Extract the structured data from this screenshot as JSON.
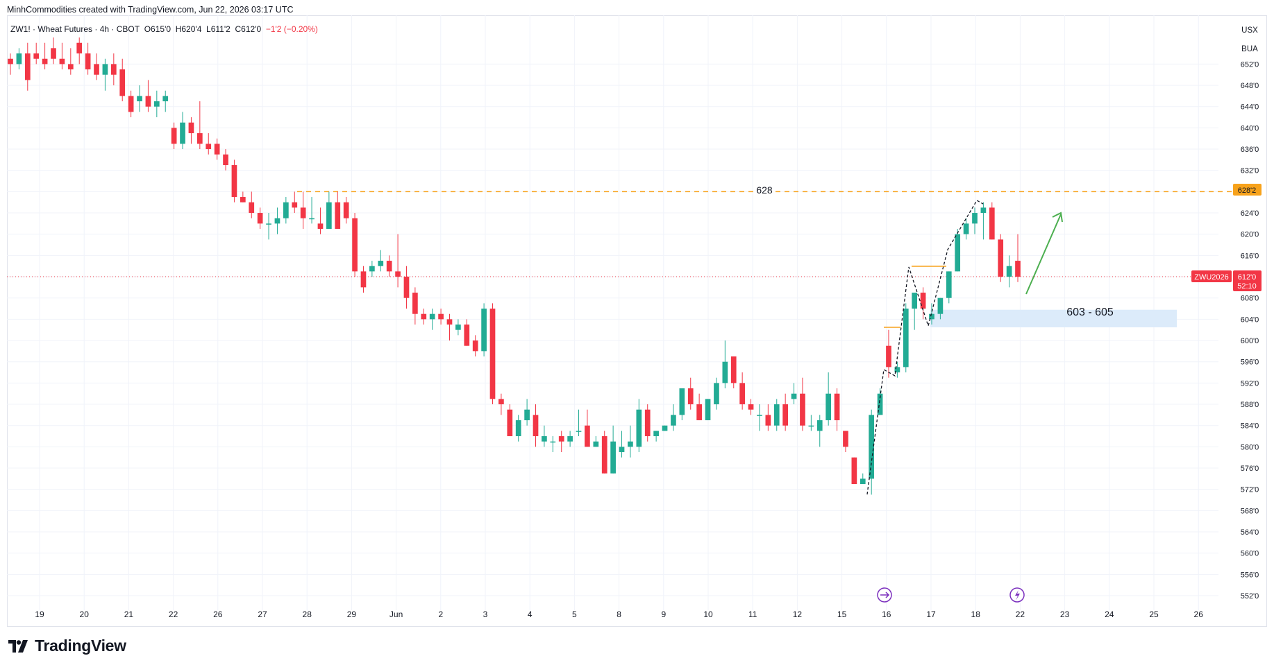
{
  "header": {
    "author_line": "MinhCommodities created with TradingView.com, Jun 22, 2026 03:17 UTC"
  },
  "legend": {
    "symbol": "ZW1! · Wheat Futures · 4h · CBOT",
    "open": "O615'0",
    "high": "H620'4",
    "low": "L611'2",
    "close": "C612'0",
    "change": "−1'2 (−0.20%)"
  },
  "scale": {
    "currency": "USX",
    "unit": "BUA"
  },
  "price_labels": {
    "level_628": "628'2",
    "current_symbol": "ZWU2026",
    "current_price": "612'0",
    "countdown": "52:10"
  },
  "annotations": {
    "resistance_label": "628",
    "support_zone_label": "603 - 605"
  },
  "brand": {
    "name": "TradingView"
  },
  "colors": {
    "up": "#22ab94",
    "down": "#f23645",
    "resistance": "#f7a21b",
    "arrow": "#4caf50",
    "zone": "#dcebfa",
    "event_icon": "#7b2fbe"
  },
  "chart_data": {
    "type": "candlestick",
    "title": "ZW1! · Wheat Futures · 4h · CBOT",
    "ylim": [
      550,
      657
    ],
    "yticks": [
      "552'0",
      "556'0",
      "560'0",
      "564'0",
      "568'0",
      "572'0",
      "576'0",
      "580'0",
      "584'0",
      "588'0",
      "592'0",
      "596'0",
      "600'0",
      "604'0",
      "608'0",
      "612'0",
      "616'0",
      "620'0",
      "624'0",
      "628'0",
      "632'0",
      "636'0",
      "640'0",
      "644'0",
      "648'0",
      "652'0"
    ],
    "x_labels": [
      "19",
      "20",
      "21",
      "22",
      "26",
      "27",
      "28",
      "29",
      "Jun",
      "2",
      "3",
      "4",
      "5",
      "8",
      "9",
      "10",
      "11",
      "12",
      "15",
      "16",
      "17",
      "18",
      "22",
      "23",
      "24",
      "25",
      "26"
    ],
    "resistance_level": 628,
    "support_zone": [
      603,
      605
    ],
    "current_price": 612,
    "candles": [
      {
        "o": 653,
        "h": 654,
        "l": 650,
        "c": 652
      },
      {
        "o": 652,
        "h": 655,
        "l": 651,
        "c": 654
      },
      {
        "o": 654,
        "h": 656,
        "l": 647,
        "c": 649
      },
      {
        "o": 654,
        "h": 656,
        "l": 652,
        "c": 653
      },
      {
        "o": 653,
        "h": 656,
        "l": 651,
        "c": 652
      },
      {
        "o": 655,
        "h": 657,
        "l": 652,
        "c": 653
      },
      {
        "o": 653,
        "h": 656,
        "l": 651,
        "c": 652
      },
      {
        "o": 652,
        "h": 655,
        "l": 650,
        "c": 651
      },
      {
        "o": 656,
        "h": 657,
        "l": 652,
        "c": 654
      },
      {
        "o": 654,
        "h": 656,
        "l": 650,
        "c": 651
      },
      {
        "o": 652,
        "h": 654,
        "l": 649,
        "c": 650
      },
      {
        "o": 650,
        "h": 653,
        "l": 647,
        "c": 652
      },
      {
        "o": 652,
        "h": 654,
        "l": 648,
        "c": 650
      },
      {
        "o": 651,
        "h": 653,
        "l": 645,
        "c": 646
      },
      {
        "o": 646,
        "h": 647,
        "l": 642,
        "c": 643
      },
      {
        "o": 645,
        "h": 648,
        "l": 643,
        "c": 646
      },
      {
        "o": 646,
        "h": 649,
        "l": 643,
        "c": 644
      },
      {
        "o": 644,
        "h": 647,
        "l": 642,
        "c": 645
      },
      {
        "o": 645,
        "h": 647,
        "l": 643,
        "c": 646
      },
      {
        "o": 640,
        "h": 641,
        "l": 636,
        "c": 637
      },
      {
        "o": 637,
        "h": 643,
        "l": 636,
        "c": 641
      },
      {
        "o": 641,
        "h": 642,
        "l": 637,
        "c": 639
      },
      {
        "o": 639,
        "h": 645,
        "l": 636,
        "c": 637
      },
      {
        "o": 637,
        "h": 639,
        "l": 635,
        "c": 636
      },
      {
        "o": 637,
        "h": 638,
        "l": 634,
        "c": 635
      },
      {
        "o": 635,
        "h": 636,
        "l": 632,
        "c": 633
      },
      {
        "o": 633,
        "h": 634,
        "l": 626,
        "c": 627
      },
      {
        "o": 627,
        "h": 628,
        "l": 626,
        "c": 626
      },
      {
        "o": 626,
        "h": 628,
        "l": 623,
        "c": 624
      },
      {
        "o": 624,
        "h": 625,
        "l": 621,
        "c": 622
      },
      {
        "o": 622,
        "h": 624,
        "l": 619,
        "c": 622
      },
      {
        "o": 622,
        "h": 625,
        "l": 620,
        "c": 623
      },
      {
        "o": 623,
        "h": 627,
        "l": 622,
        "c": 626
      },
      {
        "o": 626,
        "h": 628,
        "l": 624,
        "c": 625
      },
      {
        "o": 625,
        "h": 628,
        "l": 621,
        "c": 623
      },
      {
        "o": 623,
        "h": 627,
        "l": 622,
        "c": 623
      },
      {
        "o": 622,
        "h": 625,
        "l": 620,
        "c": 621
      },
      {
        "o": 621,
        "h": 628,
        "l": 621,
        "c": 626
      },
      {
        "o": 626,
        "h": 628,
        "l": 621,
        "c": 621
      },
      {
        "o": 626,
        "h": 627,
        "l": 622,
        "c": 623
      },
      {
        "o": 623,
        "h": 624,
        "l": 612,
        "c": 613
      },
      {
        "o": 613,
        "h": 614,
        "l": 609,
        "c": 610
      },
      {
        "o": 613,
        "h": 615,
        "l": 612,
        "c": 614
      },
      {
        "o": 614,
        "h": 617,
        "l": 613,
        "c": 615
      },
      {
        "o": 615,
        "h": 616,
        "l": 612,
        "c": 613
      },
      {
        "o": 613,
        "h": 620,
        "l": 610,
        "c": 612
      },
      {
        "o": 612,
        "h": 614,
        "l": 606,
        "c": 608
      },
      {
        "o": 609,
        "h": 610,
        "l": 603,
        "c": 605
      },
      {
        "o": 605,
        "h": 606,
        "l": 603,
        "c": 604
      },
      {
        "o": 604,
        "h": 606,
        "l": 602,
        "c": 605
      },
      {
        "o": 605,
        "h": 606,
        "l": 603,
        "c": 604
      },
      {
        "o": 604,
        "h": 605,
        "l": 600,
        "c": 603
      },
      {
        "o": 602,
        "h": 604,
        "l": 601,
        "c": 603
      },
      {
        "o": 603,
        "h": 604,
        "l": 599,
        "c": 599
      },
      {
        "o": 600,
        "h": 601,
        "l": 597,
        "c": 598
      },
      {
        "o": 598,
        "h": 607,
        "l": 597,
        "c": 606
      },
      {
        "o": 606,
        "h": 607,
        "l": 588,
        "c": 589
      },
      {
        "o": 589,
        "h": 590,
        "l": 586,
        "c": 588
      },
      {
        "o": 587,
        "h": 588,
        "l": 582,
        "c": 582
      },
      {
        "o": 582,
        "h": 586,
        "l": 581,
        "c": 585
      },
      {
        "o": 585,
        "h": 589,
        "l": 584,
        "c": 587
      },
      {
        "o": 586,
        "h": 588,
        "l": 580,
        "c": 582
      },
      {
        "o": 581,
        "h": 584,
        "l": 580,
        "c": 582
      },
      {
        "o": 581,
        "h": 582,
        "l": 579,
        "c": 581
      },
      {
        "o": 582,
        "h": 583,
        "l": 579,
        "c": 581
      },
      {
        "o": 581,
        "h": 583,
        "l": 580,
        "c": 582
      },
      {
        "o": 583,
        "h": 587,
        "l": 582,
        "c": 583
      },
      {
        "o": 584,
        "h": 587,
        "l": 580,
        "c": 580
      },
      {
        "o": 580,
        "h": 582,
        "l": 580,
        "c": 581
      },
      {
        "o": 582,
        "h": 583,
        "l": 575,
        "c": 575
      },
      {
        "o": 575,
        "h": 584,
        "l": 575,
        "c": 581
      },
      {
        "o": 579,
        "h": 583,
        "l": 578,
        "c": 580
      },
      {
        "o": 580,
        "h": 584,
        "l": 578,
        "c": 581
      },
      {
        "o": 580,
        "h": 589,
        "l": 579,
        "c": 587
      },
      {
        "o": 587,
        "h": 588,
        "l": 581,
        "c": 582
      },
      {
        "o": 582,
        "h": 583,
        "l": 581,
        "c": 583
      },
      {
        "o": 583,
        "h": 584,
        "l": 583,
        "c": 584
      },
      {
        "o": 584,
        "h": 588,
        "l": 583,
        "c": 586
      },
      {
        "o": 586,
        "h": 591,
        "l": 585,
        "c": 591
      },
      {
        "o": 591,
        "h": 593,
        "l": 587,
        "c": 588
      },
      {
        "o": 588,
        "h": 590,
        "l": 585,
        "c": 585
      },
      {
        "o": 585,
        "h": 589,
        "l": 585,
        "c": 589
      },
      {
        "o": 588,
        "h": 593,
        "l": 587,
        "c": 592
      },
      {
        "o": 592,
        "h": 600,
        "l": 591,
        "c": 596
      },
      {
        "o": 597,
        "h": 597,
        "l": 591,
        "c": 592
      },
      {
        "o": 592,
        "h": 594,
        "l": 587,
        "c": 588
      },
      {
        "o": 588,
        "h": 589,
        "l": 586,
        "c": 587
      },
      {
        "o": 586,
        "h": 588,
        "l": 583,
        "c": 586
      },
      {
        "o": 586,
        "h": 588,
        "l": 583,
        "c": 584
      },
      {
        "o": 584,
        "h": 589,
        "l": 583,
        "c": 588
      },
      {
        "o": 588,
        "h": 590,
        "l": 583,
        "c": 584
      },
      {
        "o": 589,
        "h": 592,
        "l": 588,
        "c": 590
      },
      {
        "o": 590,
        "h": 593,
        "l": 583,
        "c": 584
      },
      {
        "o": 584,
        "h": 586,
        "l": 583,
        "c": 584
      },
      {
        "o": 583,
        "h": 586,
        "l": 580,
        "c": 585
      },
      {
        "o": 585,
        "h": 594,
        "l": 584,
        "c": 590
      },
      {
        "o": 590,
        "h": 591,
        "l": 583,
        "c": 585
      },
      {
        "o": 583,
        "h": 583,
        "l": 579,
        "c": 580
      },
      {
        "o": 578,
        "h": 578,
        "l": 573,
        "c": 573
      },
      {
        "o": 573,
        "h": 575,
        "l": 573,
        "c": 574
      },
      {
        "o": 574,
        "h": 587,
        "l": 571,
        "c": 586
      },
      {
        "o": 586,
        "h": 591,
        "l": 586,
        "c": 590
      },
      {
        "o": 599,
        "h": 602,
        "l": 593,
        "c": 595
      },
      {
        "o": 594,
        "h": 596,
        "l": 593,
        "c": 595
      },
      {
        "o": 595,
        "h": 607,
        "l": 594,
        "c": 606
      },
      {
        "o": 606,
        "h": 609,
        "l": 602,
        "c": 609
      },
      {
        "o": 609,
        "h": 610,
        "l": 604,
        "c": 606
      },
      {
        "o": 604,
        "h": 607,
        "l": 603,
        "c": 605
      },
      {
        "o": 605,
        "h": 608,
        "l": 604,
        "c": 608
      },
      {
        "o": 608,
        "h": 613,
        "l": 607,
        "c": 613
      },
      {
        "o": 613,
        "h": 621,
        "l": 613,
        "c": 620
      },
      {
        "o": 620,
        "h": 623,
        "l": 619,
        "c": 622
      },
      {
        "o": 622,
        "h": 625,
        "l": 620,
        "c": 624
      },
      {
        "o": 624,
        "h": 626,
        "l": 619,
        "c": 625
      },
      {
        "o": 625,
        "h": 626,
        "l": 619,
        "c": 619
      },
      {
        "o": 619,
        "h": 620,
        "l": 611,
        "c": 612
      },
      {
        "o": 612,
        "h": 616,
        "l": 610,
        "c": 614
      },
      {
        "o": 615,
        "h": 620,
        "l": 611,
        "c": 612
      }
    ]
  }
}
